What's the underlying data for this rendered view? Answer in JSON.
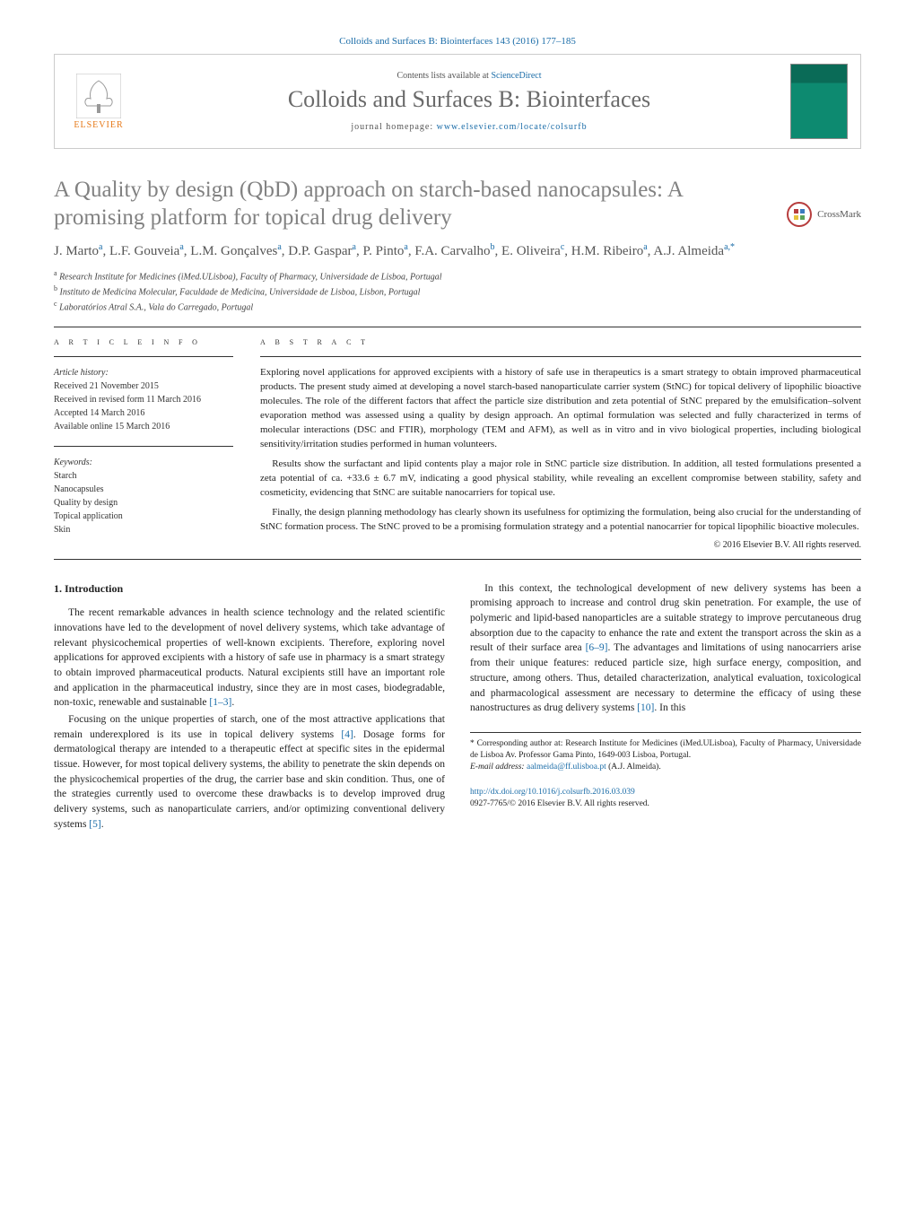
{
  "header": {
    "journal_ref_link": "Colloids and Surfaces B: Biointerfaces 143 (2016) 177–185",
    "contents_prefix": "Contents lists available at ",
    "contents_link": "ScienceDirect",
    "journal_title": "Colloids and Surfaces B: Biointerfaces",
    "homepage_prefix": "journal homepage: ",
    "homepage_link": "www.elsevier.com/locate/colsurfb",
    "elsevier_label": "ELSEVIER",
    "crossmark_label": "CrossMark"
  },
  "article": {
    "title": "A Quality by design (QbD) approach on starch-based nanocapsules: A promising platform for topical drug delivery",
    "authors_html": "J. Marto<sup>a</sup>, L.F. Gouveia<sup>a</sup>, L.M. Gonçalves<sup>a</sup>, D.P. Gaspar<sup>a</sup>, P. Pinto<sup>a</sup>, F.A. Carvalho<sup>b</sup>, E. Oliveira<sup>c</sup>, H.M. Ribeiro<sup>a</sup>, A.J. Almeida<sup>a,*</sup>",
    "affiliations": [
      {
        "sup": "a",
        "text": "Research Institute for Medicines (iMed.ULisboa), Faculty of Pharmacy, Universidade de Lisboa, Portugal"
      },
      {
        "sup": "b",
        "text": "Instituto de Medicina Molecular, Faculdade de Medicina, Universidade de Lisboa, Lisbon, Portugal"
      },
      {
        "sup": "c",
        "text": "Laboratórios Atral S.A., Vala do Carregado, Portugal"
      }
    ]
  },
  "info": {
    "section_label": "a r t i c l e   i n f o",
    "history_label": "Article history:",
    "history": [
      "Received 21 November 2015",
      "Received in revised form 11 March 2016",
      "Accepted 14 March 2016",
      "Available online 15 March 2016"
    ],
    "keywords_label": "Keywords:",
    "keywords": [
      "Starch",
      "Nanocapsules",
      "Quality by design",
      "Topical application",
      "Skin"
    ]
  },
  "abstract": {
    "section_label": "a b s t r a c t",
    "paragraphs": [
      "Exploring novel applications for approved excipients with a history of safe use in therapeutics is a smart strategy to obtain improved pharmaceutical products. The present study aimed at developing a novel starch-based nanoparticulate carrier system (StNC) for topical delivery of lipophilic bioactive molecules. The role of the different factors that affect the particle size distribution and zeta potential of StNC prepared by the emulsification–solvent evaporation method was assessed using a quality by design approach. An optimal formulation was selected and fully characterized in terms of molecular interactions (DSC and FTIR), morphology (TEM and AFM), as well as in vitro and in vivo biological properties, including biological sensitivity/irritation studies performed in human volunteers.",
      "Results show the surfactant and lipid contents play a major role in StNC particle size distribution. In addition, all tested formulations presented a zeta potential of ca. +33.6 ± 6.7 mV, indicating a good physical stability, while revealing an excellent compromise between stability, safety and cosmeticity, evidencing that StNC are suitable nanocarriers for topical use.",
      "Finally, the design planning methodology has clearly shown its usefulness for optimizing the formulation, being also crucial for the understanding of StNC formation process. The StNC proved to be a promising formulation strategy and a potential nanocarrier for topical lipophilic bioactive molecules."
    ],
    "copyright": "© 2016 Elsevier B.V. All rights reserved."
  },
  "body": {
    "heading": "1. Introduction",
    "paragraphs": [
      "The recent remarkable advances in health science technology and the related scientific innovations have led to the development of novel delivery systems, which take advantage of relevant physicochemical properties of well-known excipients. Therefore, exploring novel applications for approved excipients with a history of safe use in pharmacy is a smart strategy to obtain improved pharmaceutical products. Natural excipients still have an important role and application in the pharmaceutical industry, since they are in most cases, biodegradable, non-toxic, renewable and sustainable <a class=\"ref\" href=\"#\">[1–3]</a>.",
      "Focusing on the unique properties of starch, one of the most attractive applications that remain underexplored is its use in topical delivery systems <a class=\"ref\" href=\"#\">[4]</a>. Dosage forms for dermatological therapy are intended to a therapeutic effect at specific sites in the epidermal tissue. However, for most topical delivery systems, the ability to penetrate the skin depends on the physicochemical properties of the drug, the carrier base and skin condition. Thus, one of the strategies currently used to overcome these drawbacks is to develop improved drug delivery systems, such as nanoparticulate carriers, and/or optimizing conventional delivery systems <a class=\"ref\" href=\"#\">[5]</a>.",
      "In this context, the technological development of new delivery systems has been a promising approach to increase and control drug skin penetration. For example, the use of polymeric and lipid-based nanoparticles are a suitable strategy to improve percutaneous drug absorption due to the capacity to enhance the rate and extent the transport across the skin as a result of their surface area <a class=\"ref\" href=\"#\">[6–9]</a>. The advantages and limitations of using nanocarriers arise from their unique features: reduced particle size, high surface energy, composition, and structure, among others. Thus, detailed characterization, analytical evaluation, toxicological and pharmacological assessment are necessary to determine the efficacy of using these nanostructures as drug delivery systems <a class=\"ref\" href=\"#\">[10]</a>. In this"
    ]
  },
  "footnote": {
    "corresponding": "* Corresponding author at: Research Institute for Medicines (iMed.ULisboa), Faculty of Pharmacy, Universidade de Lisboa Av. Professor Gama Pinto, 1649-003 Lisboa, Portugal.",
    "email_label": "E-mail address: ",
    "email": "aalmeida@ff.ulisboa.pt",
    "email_who": " (A.J. Almeida)."
  },
  "doi": {
    "link": "http://dx.doi.org/10.1016/j.colsurfb.2016.03.039",
    "issn_line": "0927-7765/© 2016 Elsevier B.V. All rights reserved."
  },
  "colors": {
    "link": "#1a6ca8",
    "elsevier_orange": "#e67817",
    "title_gray": "#818181",
    "rule": "#333333"
  }
}
